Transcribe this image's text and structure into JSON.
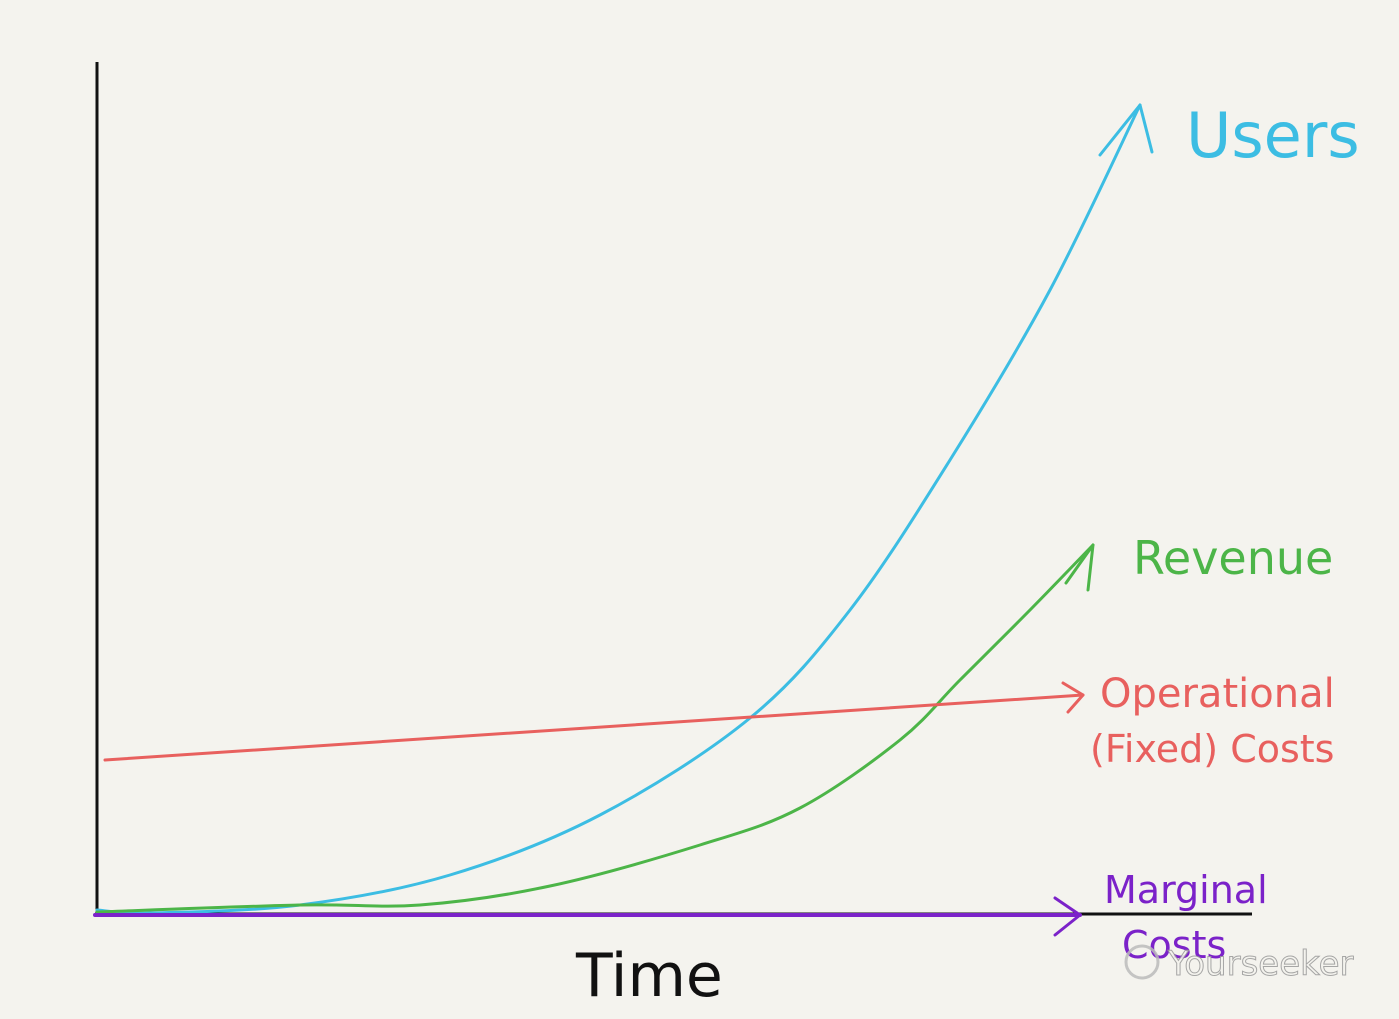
{
  "chart_data": {
    "type": "line",
    "title": "",
    "xlabel": "Time",
    "ylabel": "",
    "grid": false,
    "legend": "inline labels at line ends (right)",
    "series": [
      {
        "name": "Users",
        "color": "#3cbde3",
        "shape": "exponential growth from zero, steepest; crosses Operational (Fixed) Costs around two-thirds of the timeline"
      },
      {
        "name": "Revenue",
        "color": "#4cb548",
        "shape": "slow growth, lags Users, then accelerates; crosses Operational (Fixed) Costs later"
      },
      {
        "name": "Operational (Fixed) Costs",
        "color": "#e8605e",
        "shape": "nearly flat line with slight upward slope"
      },
      {
        "name": "Marginal Costs",
        "color": "#7b22c9",
        "shape": "flat at zero along the time axis"
      }
    ],
    "labels": {
      "users": "Users",
      "revenue": "Revenue",
      "operational_line1": "Operational",
      "operational_line2": "(Fixed) Costs",
      "marginal_line1": "Marginal",
      "marginal_line2": "Costs"
    }
  },
  "watermark": "Yourseeker"
}
